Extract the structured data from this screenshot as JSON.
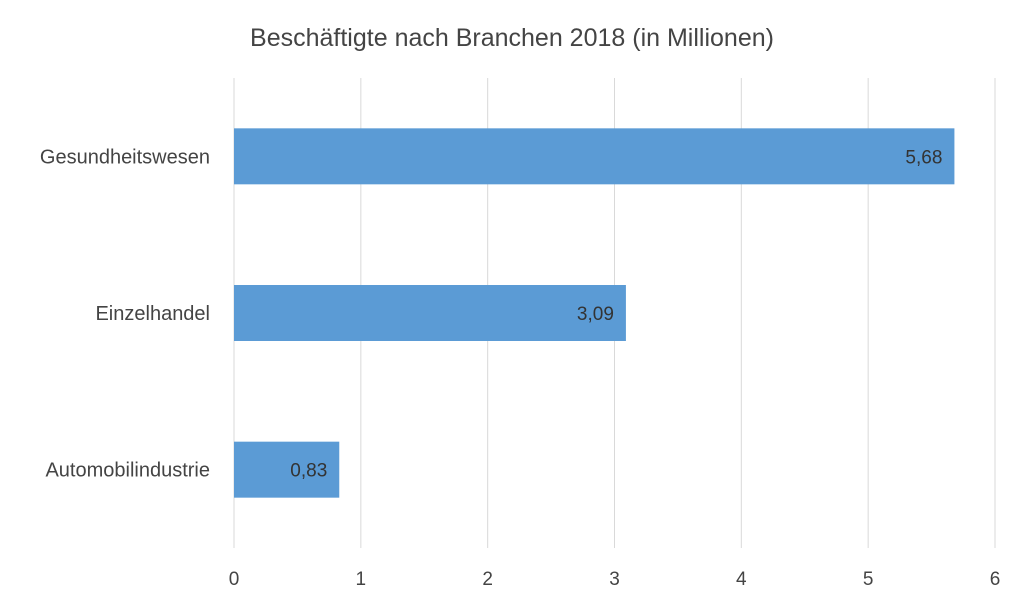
{
  "chart_data": {
    "type": "bar",
    "orientation": "horizontal",
    "title": "Beschäftigte nach Branchen 2018 (in Millionen)",
    "categories": [
      "Gesundheitswesen",
      "Einzelhandel",
      "Automobilindustrie"
    ],
    "values": [
      5.68,
      3.09,
      0.83
    ],
    "data_labels": [
      "5,68",
      "3,09",
      "0,83"
    ],
    "xlim": [
      0,
      6
    ],
    "x_ticks": [
      0,
      1,
      2,
      3,
      4,
      5,
      6
    ],
    "x_tick_labels": [
      "0",
      "1",
      "2",
      "3",
      "4",
      "5",
      "6"
    ],
    "grid": "vertical",
    "legend": "none",
    "bar_color": "#5b9bd5",
    "xlabel": "",
    "ylabel": ""
  }
}
